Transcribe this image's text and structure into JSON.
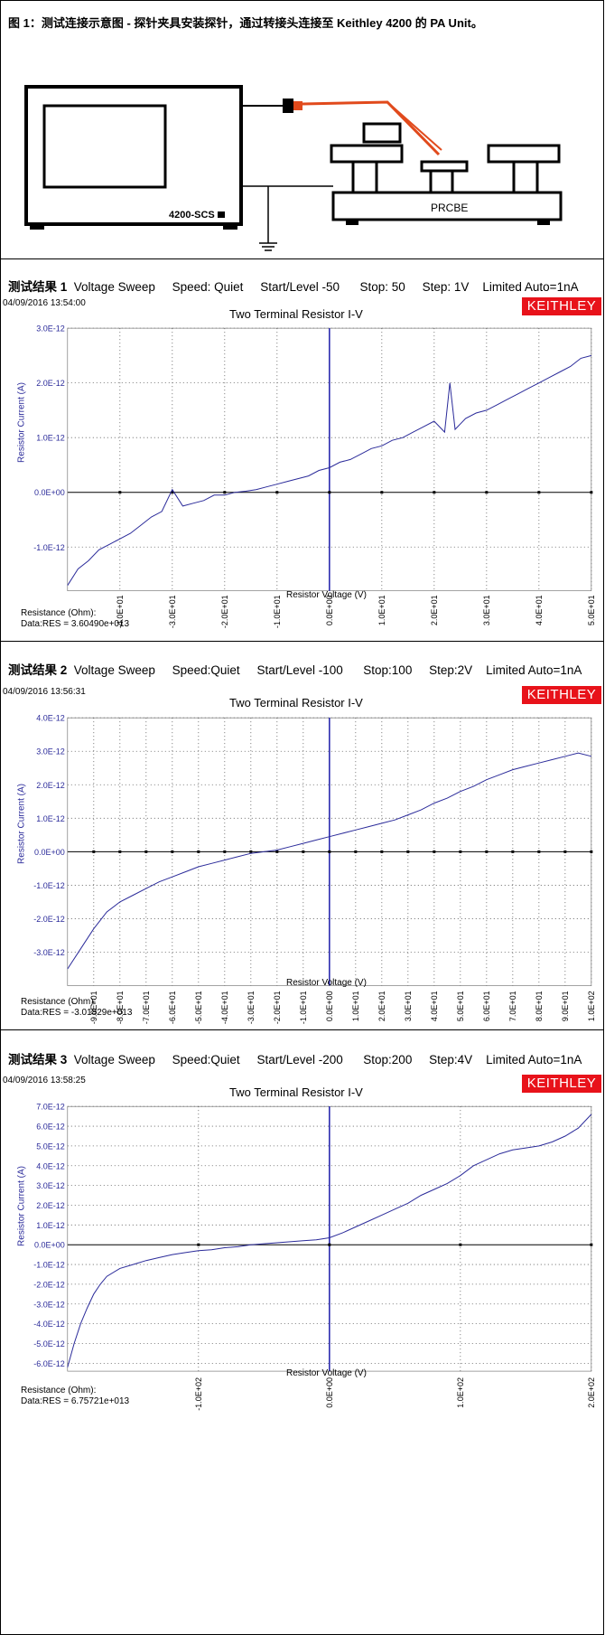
{
  "caption_top": {
    "bold": "图 1：测试连接示意图 - 探针夹具安装探针，通过转接头连接至 Keithley 4200 的 PA Unit。"
  },
  "diagram": {
    "instrument_label": "4200-SCS",
    "probe_station_label": "PRCBE"
  },
  "panels": [
    {
      "caption": {
        "label": "测试结果 1",
        "parts": [
          "Voltage Sweep",
          "Speed: Quiet",
          "Start/Level -50",
          "Stop: 50",
          "Step: 1V",
          "Limited Auto=1nA"
        ]
      },
      "timestamp": "04/09/2016 13:54:00",
      "logo": "KEITHLEY",
      "resistance_label": "Resistance (Ohm):",
      "resistance_value": "Data:RES = 3.60490e+013"
    },
    {
      "caption": {
        "label": "测试结果 2",
        "parts": [
          "Voltage Sweep",
          "Speed:Quiet",
          "Start/Level -100",
          "Stop:100",
          "Step:2V",
          "Limited Auto=1nA"
        ]
      },
      "timestamp": "04/09/2016 13:56:31",
      "logo": "KEITHLEY",
      "resistance_label": "Resistance (Ohm):",
      "resistance_value": "Data:RES = -3.01829e+013"
    },
    {
      "caption": {
        "label": "测试结果 3",
        "parts": [
          "Voltage Sweep",
          "Speed:Quiet",
          "Start/Level -200",
          "Stop:200",
          "Step:4V",
          "Limited Auto=1nA"
        ]
      },
      "timestamp": "04/09/2016 13:58:25",
      "logo": "KEITHLEY",
      "resistance_label": "Resistance (Ohm):",
      "resistance_value": "Data:RES = 6.75721e+013"
    }
  ],
  "chart_data": [
    {
      "type": "line",
      "title": "Two Terminal Resistor I-V",
      "xlabel": "Resistor Voltage (V)",
      "ylabel": "Resistor Current (A)",
      "xlim": [
        -50,
        50
      ],
      "ylim": [
        -1.8e-12,
        3e-12
      ],
      "grid": true,
      "color": "#2b2b9a",
      "yticks": [
        -1e-12,
        0,
        1e-12,
        2e-12,
        3e-12
      ],
      "ytick_labels": [
        "-1.0E-12",
        "0.0E+00",
        "1.0E-12",
        "2.0E-12",
        "3.0E-12"
      ],
      "xticks": [
        -40,
        -30,
        -20,
        -10,
        0,
        10,
        20,
        30,
        40,
        50
      ],
      "xtick_labels": [
        "-4.0E+01",
        "-3.0E+01",
        "-2.0E+01",
        "-1.0E+01",
        "0.0E+00",
        "1.0E+01",
        "2.0E+01",
        "3.0E+01",
        "4.0E+01",
        "5.0E+01"
      ],
      "x": [
        -50,
        -48,
        -46,
        -44,
        -42,
        -40,
        -38,
        -36,
        -34,
        -32,
        -30,
        -28,
        -26,
        -24,
        -22,
        -20,
        -18,
        -16,
        -14,
        -12,
        -10,
        -8,
        -6,
        -4,
        -2,
        0,
        2,
        4,
        6,
        8,
        10,
        12,
        14,
        16,
        18,
        20,
        22,
        23,
        24,
        26,
        28,
        30,
        32,
        34,
        36,
        38,
        40,
        42,
        44,
        46,
        48,
        50
      ],
      "y": [
        -1.7e-12,
        -1.4e-12,
        -1.25e-12,
        -1.05e-12,
        -9.5e-13,
        -8.5e-13,
        -7.5e-13,
        -6e-13,
        -4.5e-13,
        -3.5e-13,
        5e-14,
        -2.5e-13,
        -2e-13,
        -1.5e-13,
        -5e-14,
        -5e-14,
        0,
        2e-14,
        5e-14,
        1e-13,
        1.5e-13,
        2e-13,
        2.5e-13,
        3e-13,
        4e-13,
        4.5e-13,
        5.5e-13,
        6e-13,
        7e-13,
        8e-13,
        8.5e-13,
        9.5e-13,
        1e-12,
        1.1e-12,
        1.2e-12,
        1.3e-12,
        1.1e-12,
        2e-12,
        1.15e-12,
        1.35e-12,
        1.45e-12,
        1.5e-12,
        1.6e-12,
        1.7e-12,
        1.8e-12,
        1.9e-12,
        2e-12,
        2.1e-12,
        2.2e-12,
        2.3e-12,
        2.45e-12,
        2.5e-12
      ]
    },
    {
      "type": "line",
      "title": "Two Terminal Resistor I-V",
      "xlabel": "Resistor Voltage (V)",
      "ylabel": "Resistor Current (A)",
      "xlim": [
        -100,
        100
      ],
      "ylim": [
        -4e-12,
        4e-12
      ],
      "grid": true,
      "color": "#2b2b9a",
      "yticks": [
        -3e-12,
        -2e-12,
        -1e-12,
        0,
        1e-12,
        2e-12,
        3e-12,
        4e-12
      ],
      "ytick_labels": [
        "-3.0E-12",
        "-2.0E-12",
        "-1.0E-12",
        "0.0E+00",
        "1.0E-12",
        "2.0E-12",
        "3.0E-12",
        "4.0E-12"
      ],
      "xticks": [
        -90,
        -80,
        -70,
        -60,
        -50,
        -40,
        -30,
        -20,
        -10,
        0,
        10,
        20,
        30,
        40,
        50,
        60,
        70,
        80,
        90,
        100
      ],
      "xtick_labels": [
        "-9.0E+01",
        "-8.0E+01",
        "-7.0E+01",
        "-6.0E+01",
        "-5.0E+01",
        "-4.0E+01",
        "-3.0E+01",
        "-2.0E+01",
        "-1.0E+01",
        "0.0E+00",
        "1.0E+01",
        "2.0E+01",
        "3.0E+01",
        "4.0E+01",
        "5.0E+01",
        "6.0E+01",
        "7.0E+01",
        "8.0E+01",
        "9.0E+01",
        "1.0E+02"
      ],
      "x": [
        -100,
        -95,
        -90,
        -85,
        -80,
        -75,
        -70,
        -65,
        -60,
        -55,
        -50,
        -45,
        -40,
        -35,
        -30,
        -25,
        -20,
        -15,
        -10,
        -5,
        0,
        5,
        10,
        15,
        20,
        25,
        30,
        35,
        40,
        45,
        50,
        55,
        60,
        65,
        70,
        75,
        80,
        85,
        90,
        95,
        100
      ],
      "y": [
        -3.5e-12,
        -2.9e-12,
        -2.3e-12,
        -1.8e-12,
        -1.5e-12,
        -1.3e-12,
        -1.1e-12,
        -9e-13,
        -7.5e-13,
        -6e-13,
        -4.5e-13,
        -3.5e-13,
        -2.5e-13,
        -1.5e-13,
        -5e-14,
        0,
        5e-14,
        1.5e-13,
        2.5e-13,
        3.5e-13,
        4.5e-13,
        5.5e-13,
        6.5e-13,
        7.5e-13,
        8.5e-13,
        9.5e-13,
        1.1e-12,
        1.25e-12,
        1.45e-12,
        1.6e-12,
        1.8e-12,
        1.95e-12,
        2.15e-12,
        2.3e-12,
        2.45e-12,
        2.55e-12,
        2.65e-12,
        2.75e-12,
        2.85e-12,
        2.95e-12,
        2.85e-12
      ]
    },
    {
      "type": "line",
      "title": "Two Terminal Resistor I-V",
      "xlabel": "Resistor Voltage (V)",
      "ylabel": "Resistor Current (A)",
      "xlim": [
        -200,
        200
      ],
      "ylim": [
        -6.4e-12,
        7e-12
      ],
      "grid": true,
      "color": "#2b2b9a",
      "yticks": [
        -6e-12,
        -5e-12,
        -4e-12,
        -3e-12,
        -2e-12,
        -1e-12,
        0,
        1e-12,
        2e-12,
        3e-12,
        4e-12,
        5e-12,
        6e-12,
        7e-12
      ],
      "ytick_labels": [
        "-6.0E-12",
        "-5.0E-12",
        "-4.0E-12",
        "-3.0E-12",
        "-2.0E-12",
        "-1.0E-12",
        "0.0E+00",
        "1.0E-12",
        "2.0E-12",
        "3.0E-12",
        "4.0E-12",
        "5.0E-12",
        "6.0E-12",
        "7.0E-12"
      ],
      "xticks": [
        -100,
        0,
        100,
        200
      ],
      "xtick_labels": [
        "-1.0E+02",
        "0.0E+00",
        "1.0E+02",
        "2.0E+02"
      ],
      "x": [
        -200,
        -195,
        -190,
        -185,
        -180,
        -175,
        -170,
        -160,
        -150,
        -140,
        -130,
        -120,
        -110,
        -100,
        -90,
        -80,
        -70,
        -60,
        -50,
        -40,
        -30,
        -20,
        -10,
        0,
        10,
        20,
        30,
        40,
        50,
        60,
        70,
        80,
        90,
        100,
        110,
        120,
        130,
        140,
        150,
        160,
        170,
        180,
        190,
        200
      ],
      "y": [
        -6.2e-12,
        -5e-12,
        -4e-12,
        -3.2e-12,
        -2.5e-12,
        -2e-12,
        -1.6e-12,
        -1.2e-12,
        -1e-12,
        -8e-13,
        -6.5e-13,
        -5e-13,
        -4e-13,
        -3e-13,
        -2.5e-13,
        -1.5e-13,
        -1e-13,
        0,
        5e-14,
        1e-13,
        1.5e-13,
        2e-13,
        2.5e-13,
        3.5e-13,
        6e-13,
        9e-13,
        1.2e-12,
        1.5e-12,
        1.8e-12,
        2.1e-12,
        2.5e-12,
        2.8e-12,
        3.1e-12,
        3.5e-12,
        4e-12,
        4.3e-12,
        4.6e-12,
        4.8e-12,
        4.9e-12,
        5e-12,
        5.2e-12,
        5.5e-12,
        5.9e-12,
        6.6e-12
      ]
    }
  ]
}
